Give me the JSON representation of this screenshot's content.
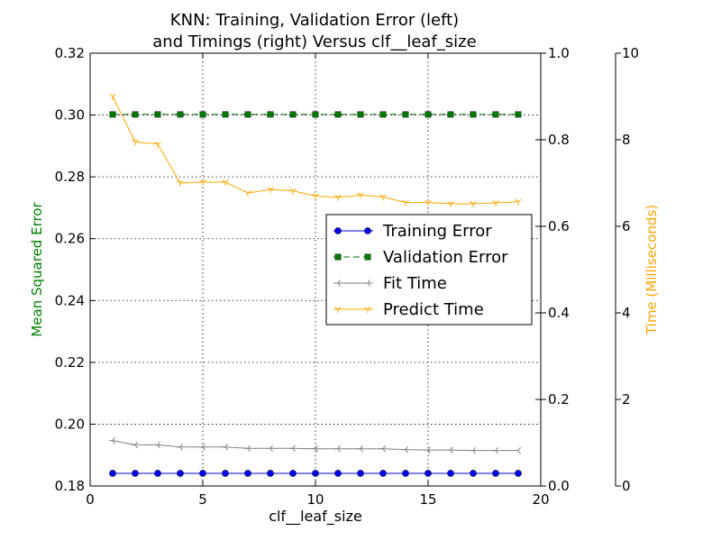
{
  "chart_data": {
    "type": "line",
    "title_line1": "KNN: Training, Validation Error (left)",
    "title_line2": "and Timings (right) Versus clf__leaf_size",
    "xlabel": "clf__leaf_size",
    "ylabel_left": "Mean Squared Error",
    "ylabel_right": "Time (Milliseconds)",
    "xlim": [
      0,
      20
    ],
    "ylim_left": [
      0.18,
      0.32
    ],
    "ylim_right_inner": [
      0.0,
      1.0
    ],
    "ylim_right_outer": [
      0,
      10
    ],
    "grid": true,
    "legend_position": "center-right",
    "x_ticks": [
      "0",
      "5",
      "10",
      "15",
      "20"
    ],
    "y_left_ticks": [
      "0.18",
      "0.20",
      "0.22",
      "0.24",
      "0.26",
      "0.28",
      "0.30",
      "0.32"
    ],
    "y_right_inner_ticks": [
      "0.0",
      "0.2",
      "0.4",
      "0.6",
      "0.8",
      "1.0"
    ],
    "y_right_outer_ticks": [
      "0",
      "2",
      "4",
      "6",
      "8",
      "10"
    ],
    "x": [
      1,
      2,
      3,
      4,
      5,
      6,
      7,
      8,
      9,
      10,
      11,
      12,
      13,
      14,
      15,
      16,
      17,
      18,
      19
    ],
    "series": [
      {
        "name": "Training Error",
        "axis": "left",
        "color": "#0000ff",
        "values": [
          0.1841,
          0.1841,
          0.1841,
          0.1841,
          0.1841,
          0.1841,
          0.1841,
          0.1841,
          0.1841,
          0.1841,
          0.1841,
          0.1841,
          0.1841,
          0.1841,
          0.1841,
          0.1841,
          0.1841,
          0.1841,
          0.1841
        ]
      },
      {
        "name": "Validation Error",
        "axis": "left",
        "color": "#007700",
        "values": [
          0.3002,
          0.3002,
          0.3002,
          0.3002,
          0.3002,
          0.3002,
          0.3002,
          0.3002,
          0.3002,
          0.3002,
          0.3002,
          0.3002,
          0.3002,
          0.3002,
          0.3002,
          0.3002,
          0.3002,
          0.3002,
          0.3002
        ]
      },
      {
        "name": "Fit Time",
        "axis": "right",
        "color": "#808080",
        "values": [
          1.05,
          0.95,
          0.95,
          0.9,
          0.9,
          0.9,
          0.87,
          0.87,
          0.87,
          0.86,
          0.86,
          0.86,
          0.86,
          0.84,
          0.83,
          0.83,
          0.82,
          0.82,
          0.82
        ]
      },
      {
        "name": "Predict Time",
        "axis": "right",
        "color": "#ffa500",
        "values": [
          9.0,
          7.95,
          7.9,
          7.0,
          7.02,
          7.02,
          6.77,
          6.85,
          6.82,
          6.7,
          6.67,
          6.72,
          6.68,
          6.55,
          6.55,
          6.52,
          6.52,
          6.54,
          6.57
        ]
      }
    ]
  }
}
